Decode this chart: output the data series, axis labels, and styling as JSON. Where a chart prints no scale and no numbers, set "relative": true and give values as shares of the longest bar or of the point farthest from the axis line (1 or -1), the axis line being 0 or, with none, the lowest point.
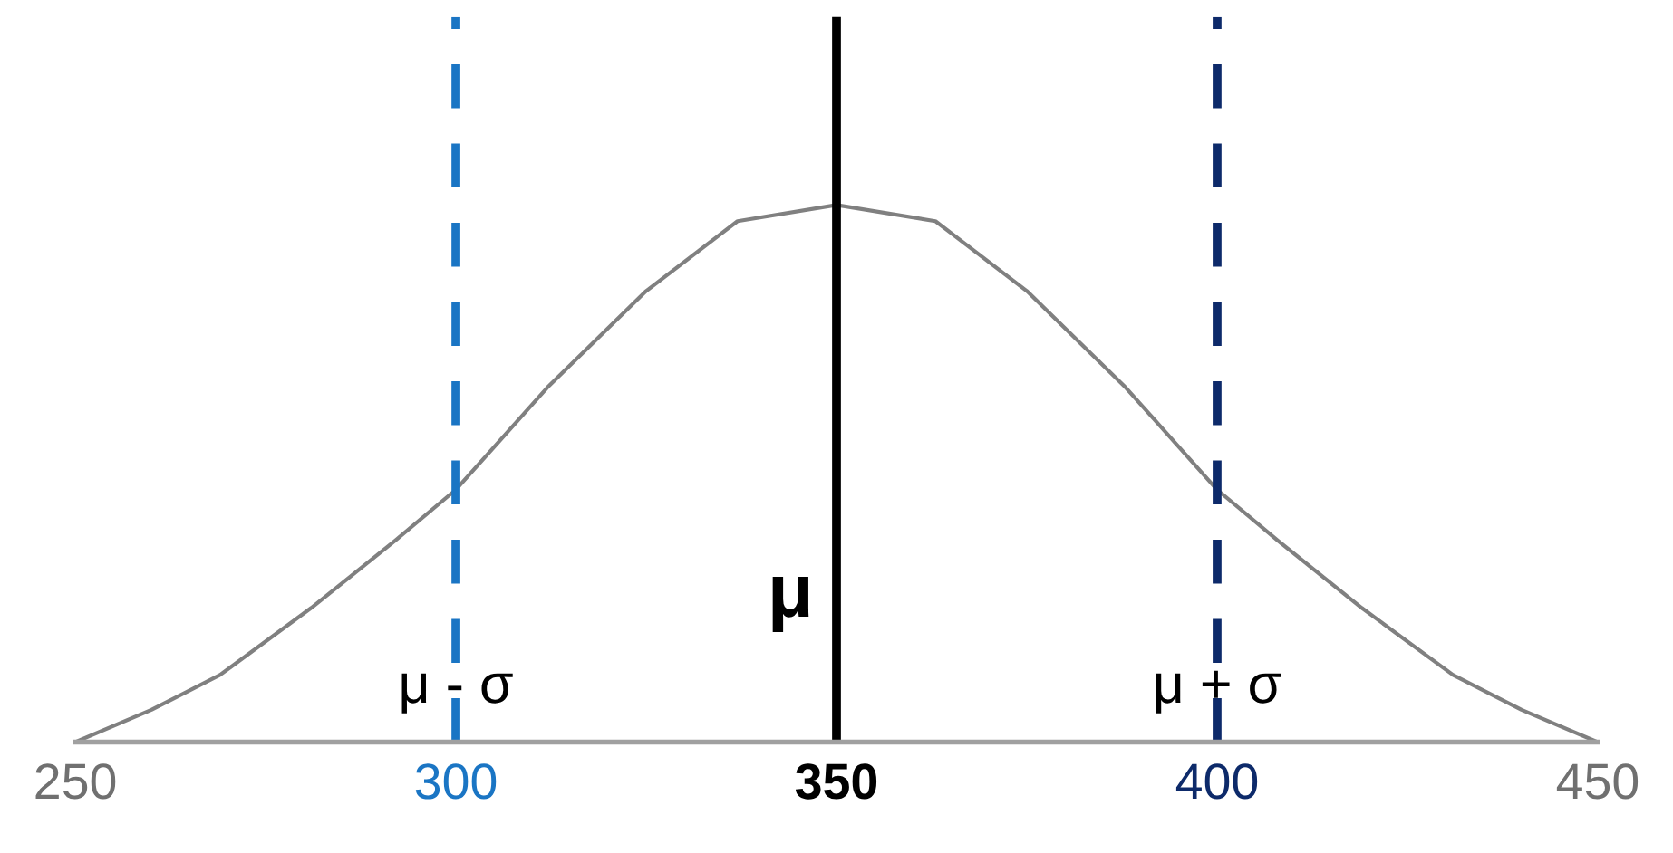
{
  "chart_data": {
    "type": "line",
    "relative": true,
    "x": [
      250,
      260,
      269,
      281,
      292,
      300,
      312,
      325,
      337,
      350,
      363,
      375,
      388,
      400,
      408,
      419,
      431,
      440,
      450
    ],
    "series": [
      {
        "color": "#808080",
        "values": [
          0.0,
          0.06,
          0.125,
          0.25,
          0.375,
          0.47,
          0.66,
          0.84,
          0.97,
          1.0,
          0.97,
          0.84,
          0.66,
          0.47,
          0.375,
          0.25,
          0.125,
          0.06,
          0.0
        ]
      }
    ],
    "xlim": [
      250,
      450
    ],
    "xticks": [
      250,
      300,
      350,
      400,
      450
    ],
    "ref_lines": [
      {
        "axis": "x",
        "value": 300,
        "label": "μ - σ",
        "color": "#1a75c4",
        "line_style": "dashed"
      },
      {
        "axis": "x",
        "value": 350,
        "label": "μ",
        "color": "#000000",
        "line_style": "solid"
      },
      {
        "axis": "x",
        "value": 400,
        "label": "μ + σ",
        "color": "#0d2a6a",
        "line_style": "dashed"
      }
    ],
    "grid": false,
    "legend": false
  }
}
